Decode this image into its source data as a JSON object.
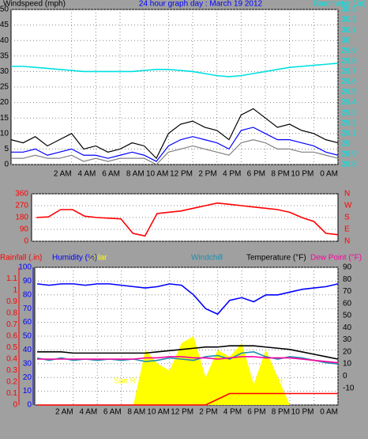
{
  "chart_data": [
    {
      "type": "line",
      "title": "24 hour graph day : March 19 2012",
      "ylabel": "Windspeed (mph)",
      "y2label": "Barometer (.in)",
      "ylabel_color": "#000000",
      "title_color": "#0000ff",
      "y2label_color": "#00e0e0",
      "xlim": [
        -3,
        24
      ],
      "xticks": [
        {
          "value": 2,
          "label": "2 AM"
        },
        {
          "value": 4,
          "label": "4 AM"
        },
        {
          "value": 6,
          "label": "6 AM"
        },
        {
          "value": 8,
          "label": "8 AM"
        },
        {
          "value": 10,
          "label": "10 AM"
        },
        {
          "value": 12,
          "label": "12 PM"
        },
        {
          "value": 14,
          "label": "2 PM"
        },
        {
          "value": 16,
          "label": "4 PM"
        },
        {
          "value": 18,
          "label": "6 PM"
        },
        {
          "value": 20,
          "label": "8 PM"
        },
        {
          "value": 22,
          "label": "10 PM"
        },
        {
          "value": 24,
          "label": "0 AM"
        }
      ],
      "ylim": [
        0,
        50
      ],
      "yticks": [
        0,
        5,
        10,
        15,
        20,
        25,
        30,
        35,
        40,
        45,
        50
      ],
      "ytick_color": "#000000",
      "y2lim": [
        28.8,
        30.3
      ],
      "y2ticks": [
        28.8,
        28.9,
        29,
        29.1,
        29.2,
        29.3,
        29.4,
        29.5,
        29.6,
        29.7,
        29.8,
        29.9,
        30,
        30.1,
        30.2,
        30.3
      ],
      "y2tick_color": "#00e0e0",
      "grid": true,
      "x": [
        -3,
        -2,
        -1,
        0,
        1,
        2,
        3,
        4,
        5,
        6,
        7,
        8,
        9,
        10,
        11,
        12,
        13,
        14,
        15,
        16,
        17,
        18,
        19,
        20,
        21,
        22,
        23,
        24
      ],
      "series": [
        {
          "color": "#808080",
          "values": [
            2,
            2,
            3,
            2,
            2,
            3,
            1,
            2,
            1,
            2,
            2,
            2,
            0,
            4,
            5,
            6,
            5,
            4,
            3,
            7,
            8,
            7,
            5,
            5,
            4,
            4,
            3,
            2
          ]
        },
        {
          "color": "#000000",
          "values": [
            8,
            7,
            9,
            6,
            8,
            10,
            5,
            6,
            4,
            5,
            7,
            6,
            2,
            10,
            13,
            14,
            12,
            11,
            8,
            16,
            18,
            15,
            12,
            13,
            11,
            10,
            8,
            7
          ]
        },
        {
          "color": "#0000ff",
          "values": [
            4,
            4,
            5,
            3,
            4,
            5,
            3,
            3,
            2,
            3,
            4,
            3,
            1,
            6,
            8,
            9,
            8,
            7,
            5,
            11,
            12,
            10,
            8,
            8,
            7,
            6,
            4,
            3
          ]
        },
        {
          "color": "#00e0e0",
          "axis": "y2",
          "values": [
            29.75,
            29.75,
            29.74,
            29.73,
            29.72,
            29.71,
            29.7,
            29.7,
            29.7,
            29.7,
            29.7,
            29.71,
            29.72,
            29.72,
            29.71,
            29.7,
            29.68,
            29.66,
            29.65,
            29.66,
            29.68,
            29.7,
            29.72,
            29.74,
            29.75,
            29.76,
            29.77,
            29.78
          ]
        }
      ]
    },
    {
      "type": "line",
      "xlim": [
        -1.4,
        24
      ],
      "ylim": [
        0,
        360
      ],
      "yticks": [
        0,
        90,
        180,
        270,
        360
      ],
      "ytick_color": "#ff0000",
      "y2lim": [
        0,
        360
      ],
      "y2ticks": [
        {
          "value": 360,
          "label": "N"
        },
        {
          "value": 270,
          "label": "W"
        },
        {
          "value": 180,
          "label": "S"
        },
        {
          "value": 90,
          "label": "E"
        },
        {
          "value": 0,
          "label": "N"
        }
      ],
      "y2tick_color": "#ff0000",
      "grid": true,
      "x": [
        -1,
        0,
        1,
        2,
        3,
        4,
        5,
        6,
        7,
        8,
        9,
        10,
        11,
        12,
        13,
        14,
        15,
        16,
        17,
        18,
        19,
        20,
        21,
        22,
        23,
        24
      ],
      "series": [
        {
          "color": "#ff0000",
          "values": [
            180,
            185,
            240,
            240,
            190,
            180,
            175,
            170,
            60,
            40,
            210,
            220,
            230,
            250,
            270,
            290,
            280,
            270,
            260,
            250,
            240,
            220,
            180,
            150,
            60,
            50
          ]
        }
      ]
    },
    {
      "type": "line",
      "xlim": [
        -1.2,
        24
      ],
      "xticks": [
        {
          "value": 2,
          "label": "2 AM"
        },
        {
          "value": 4,
          "label": "4 AM"
        },
        {
          "value": 6,
          "label": "6 AM"
        },
        {
          "value": 8,
          "label": "8 AM"
        },
        {
          "value": 10,
          "label": "10 AM"
        },
        {
          "value": 12,
          "label": "12 PM"
        },
        {
          "value": 14,
          "label": "2 PM"
        },
        {
          "value": 16,
          "label": "4 PM"
        },
        {
          "value": 18,
          "label": "6 PM"
        },
        {
          "value": 20,
          "label": "8 PM"
        },
        {
          "value": 22,
          "label": "10 PM"
        },
        {
          "value": 24,
          "label": "0 AM"
        }
      ],
      "ylim": [
        0,
        100
      ],
      "yticks": [
        0,
        10,
        20,
        30,
        40,
        50,
        60,
        70,
        80,
        90,
        100
      ],
      "ytick_color": "#0000ff",
      "y2lim": [
        -24,
        90
      ],
      "y2ticks": [
        -10,
        0,
        10,
        20,
        30,
        40,
        50,
        60,
        70,
        80,
        90
      ],
      "y2tick_color": "#000000",
      "y3lim": [
        0,
        1.2
      ],
      "y3ticks": [
        0,
        0.1,
        0.2,
        0.3,
        0.4,
        0.5,
        0.6,
        0.7,
        0.8,
        0.9,
        1,
        1.1
      ],
      "y3tick_color": "#ff0000",
      "grid": true,
      "x": [
        -1,
        0,
        1,
        2,
        3,
        4,
        5,
        6,
        7,
        8,
        9,
        10,
        11,
        12,
        13,
        14,
        15,
        16,
        17,
        18,
        19,
        20,
        21,
        22,
        23,
        24
      ],
      "series": [
        {
          "name": "Solar",
          "color": "#ffff00",
          "type": "area",
          "axis": "y",
          "values": [
            0,
            0,
            0,
            0,
            0,
            0,
            0,
            0,
            0,
            40,
            30,
            25,
            45,
            50,
            20,
            40,
            35,
            45,
            15,
            40,
            20,
            0,
            0,
            0,
            0,
            0
          ]
        },
        {
          "name": "Rainfall (.in)",
          "color": "#ff0000",
          "axis": "y3",
          "values": [
            0,
            0,
            0,
            0,
            0,
            0,
            0,
            0,
            0,
            0,
            0,
            0,
            0,
            0,
            0,
            0.05,
            0.1,
            0.1,
            0.1,
            0.1,
            0.1,
            0.1,
            0.1,
            0.1,
            0.1,
            0.1
          ]
        },
        {
          "name": "Humidity (%)",
          "color": "#0000ff",
          "axis": "y",
          "values": [
            88,
            87,
            88,
            88,
            87,
            88,
            88,
            87,
            86,
            85,
            86,
            88,
            87,
            80,
            70,
            66,
            76,
            78,
            75,
            80,
            80,
            82,
            84,
            85,
            86,
            88
          ]
        },
        {
          "name": "Windchill",
          "color": "#1a8fb0",
          "axis": "y2",
          "values": [
            15,
            13,
            15,
            13,
            14,
            13,
            14,
            13,
            14,
            12,
            13,
            15,
            14,
            13,
            16,
            17,
            14,
            19,
            20,
            16,
            14,
            16,
            15,
            13,
            11,
            10
          ]
        },
        {
          "name": "Temperature (°F)",
          "color": "#000000",
          "axis": "y2",
          "values": [
            20,
            20,
            20,
            19,
            19,
            19,
            19,
            19,
            19,
            19,
            20,
            21,
            22,
            23,
            24,
            24,
            25,
            25,
            25,
            24,
            23,
            22,
            20,
            18,
            16,
            14
          ]
        },
        {
          "name": "Dew Point (°F)",
          "color": "#ff00a0",
          "axis": "y2",
          "values": [
            14,
            14,
            14,
            14,
            14,
            14,
            14,
            14,
            14,
            15,
            15,
            16,
            16,
            15,
            15,
            14,
            15,
            16,
            16,
            15,
            15,
            15,
            14,
            13,
            12,
            11
          ]
        }
      ],
      "annotations": [
        {
          "text": "Sun R",
          "x": 7.2,
          "color": "#ffff00"
        },
        {
          "text": "Set",
          "x": 19.4,
          "color": "#ffff00"
        }
      ]
    }
  ]
}
